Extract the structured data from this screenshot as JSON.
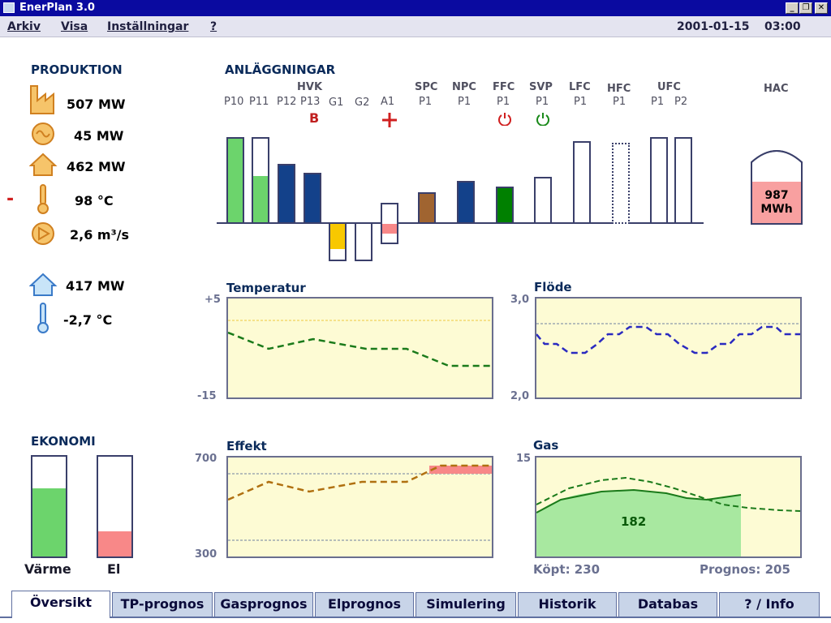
{
  "window": {
    "title": "EnerPlan 3.0"
  },
  "menu": {
    "items": [
      "Arkiv",
      "Visa",
      "Inställningar",
      "?"
    ],
    "date": "2001-01-15",
    "time": "03:00"
  },
  "produktion": {
    "title": "PRODUKTION",
    "items": [
      {
        "icon": "factory-icon",
        "value": "507 MW"
      },
      {
        "icon": "generator-icon",
        "value": "45 MW"
      },
      {
        "icon": "house-icon",
        "value": "462 MW"
      },
      {
        "icon": "thermometer-icon",
        "value": "98 °C",
        "marker": "-"
      },
      {
        "icon": "pump-icon",
        "value": "2,6 m³/s"
      }
    ],
    "consumption": [
      {
        "icon": "house-outline-icon",
        "value": "417 MW"
      },
      {
        "icon": "thermometer-blue-icon",
        "value": "-2,7 °C"
      }
    ]
  },
  "anlaggningar": {
    "title": "ANLÄGGNINGAR",
    "groups": [
      "HVK",
      "SPC",
      "NPC",
      "FFC",
      "SVP",
      "LFC",
      "HFC",
      "UFC",
      "HAC"
    ],
    "units": [
      "P10",
      "P11",
      "P12",
      "P13",
      "G1",
      "G2",
      "A1",
      "P1",
      "P1",
      "P1",
      "P1",
      "P1",
      "P1",
      "P1",
      "P2"
    ],
    "flag_b": "B",
    "hac_value": "987",
    "hac_unit": "MWh",
    "colors": {
      "green": "#6cd46c",
      "navy": "#13418a",
      "yellow": "#f8c800",
      "pink": "#f88888",
      "brown": "#a06430",
      "darkgreen": "#008000",
      "red": "#d02020"
    }
  },
  "charts": {
    "temperatur": {
      "title": "Temperatur",
      "ymax": "+5",
      "ymin": "-15"
    },
    "flode": {
      "title": "Flöde",
      "ymax": "3,0",
      "ymin": "2,0"
    },
    "effekt": {
      "title": "Effekt",
      "ymax": "700",
      "ymin": "300"
    },
    "gas": {
      "title": "Gas",
      "ymax": "15",
      "value": "182",
      "kopt": "Köpt: 230",
      "prognos": "Prognos: 205"
    }
  },
  "ekonomi": {
    "title": "EKONOMI",
    "labels": [
      "Värme",
      "El"
    ],
    "varme_fill": 0.68,
    "el_fill": 0.25
  },
  "tabs": [
    "Översikt",
    "TP-prognos",
    "Gasprognos",
    "Elprognos",
    "Simulering",
    "Historik",
    "Databas",
    "? / Info"
  ]
}
